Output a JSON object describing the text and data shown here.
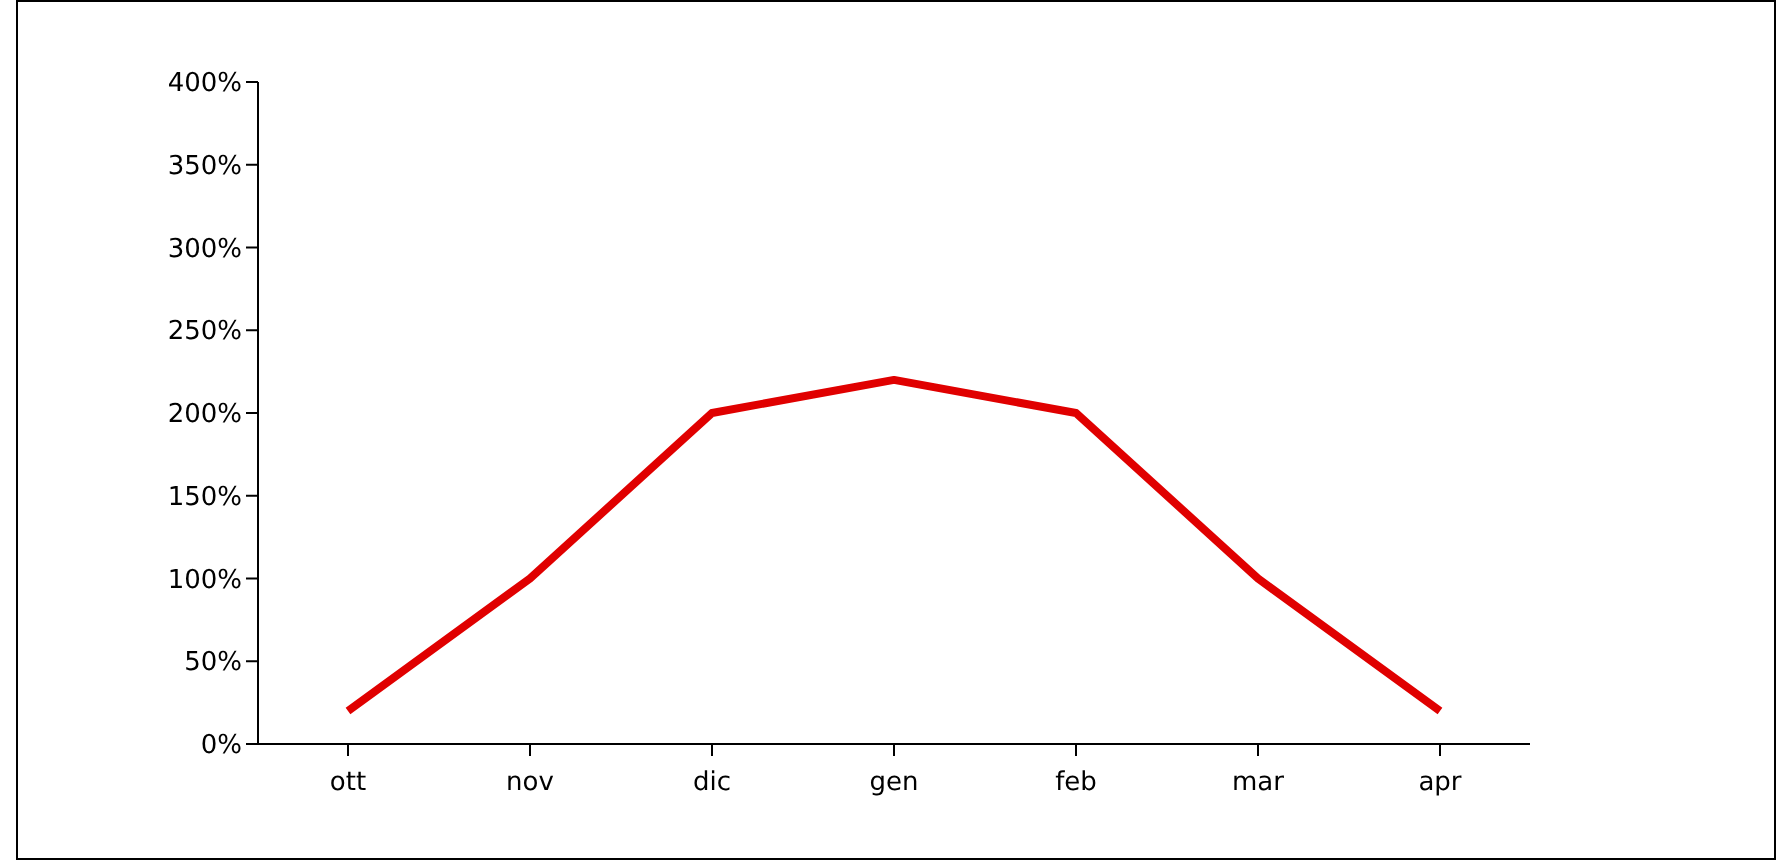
{
  "chart_data": {
    "type": "line",
    "categories": [
      "ott",
      "nov",
      "dic",
      "gen",
      "feb",
      "mar",
      "apr"
    ],
    "series": [
      {
        "color": "#e00000",
        "values": [
          20,
          100,
          200,
          220,
          200,
          100,
          20
        ]
      }
    ],
    "ylim": [
      0,
      400
    ],
    "yticks": [
      {
        "value": 0,
        "label": "0%"
      },
      {
        "value": 50,
        "label": "50%"
      },
      {
        "value": 100,
        "label": "100%"
      },
      {
        "value": 150,
        "label": "150%"
      },
      {
        "value": 200,
        "label": "200%"
      },
      {
        "value": 250,
        "label": "250%"
      },
      {
        "value": 300,
        "label": "300%"
      },
      {
        "value": 350,
        "label": "350%"
      },
      {
        "value": 400,
        "label": "400%"
      }
    ],
    "grid": false,
    "legend": false,
    "marker": "none",
    "line_style": "solid"
  }
}
